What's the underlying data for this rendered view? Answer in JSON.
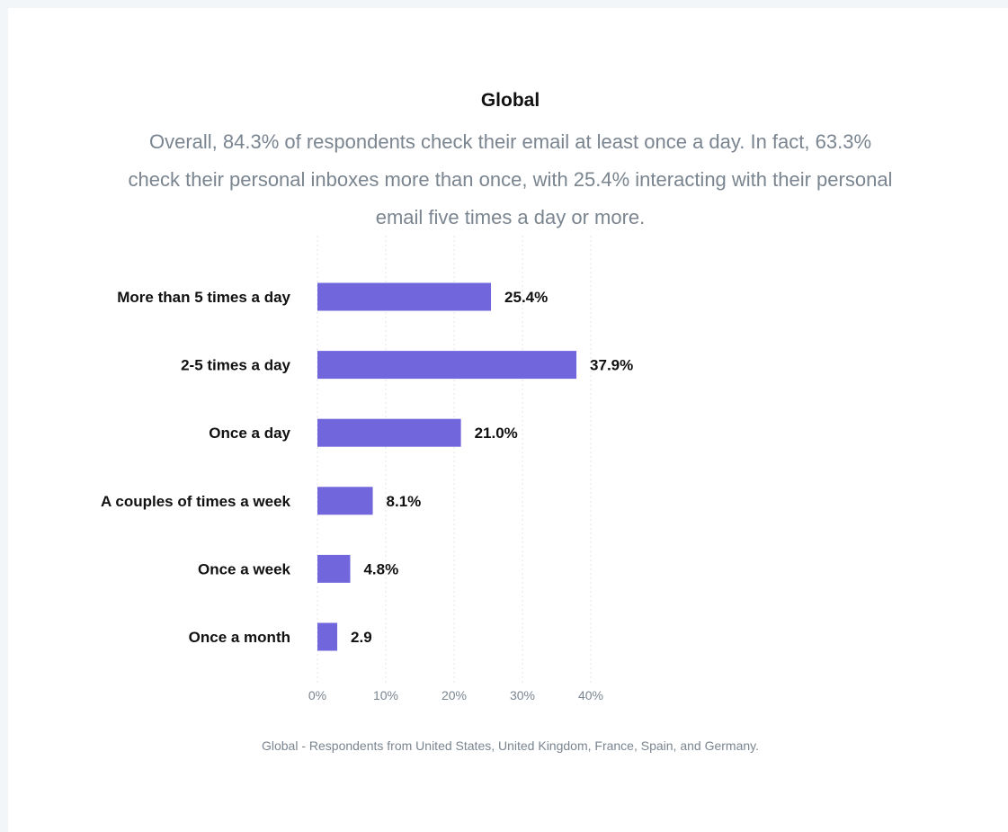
{
  "title": "Global",
  "subtitle": "Overall, 84.3% of respondents check their email at least once a day. In fact, 63.3% check their personal inboxes more than once, with 25.4% interacting with their personal email five times a day or more.",
  "caption": "Global - Respondents from United States, United Kingdom, France, Spain, and Germany.",
  "colors": {
    "bar": "#7166dc",
    "grid": "#e3e6ea",
    "text": "#111111",
    "muted": "#7a8590"
  },
  "chart_data": {
    "type": "bar",
    "orientation": "horizontal",
    "categories": [
      "More than 5 times a day",
      "2-5 times a day",
      "Once a day",
      "A couples of times a week",
      "Once a week",
      "Once a month"
    ],
    "values": [
      25.4,
      37.9,
      21.0,
      8.1,
      4.8,
      2.9
    ],
    "value_labels": [
      "25.4%",
      "37.9%",
      "21.0%",
      "8.1%",
      "4.8%",
      "2.9"
    ],
    "xlim": [
      0,
      40
    ],
    "x_ticks": [
      "0%",
      "10%",
      "20%",
      "30%",
      "40%"
    ],
    "grid": true,
    "legend": "none"
  }
}
